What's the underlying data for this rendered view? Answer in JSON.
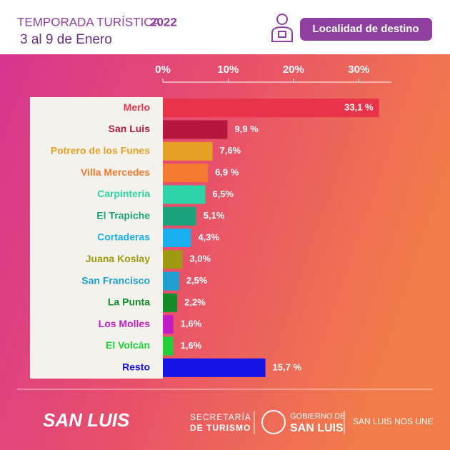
{
  "chart_data": {
    "type": "bar",
    "title": "TEMPORADA TURÍSTICA",
    "title_year": "2022",
    "subtitle": "3 al 9 de Enero",
    "button": "Localidad de destino",
    "categories": [
      "Merlo",
      "San Luis",
      "Potrero de los Funes",
      "Villa Mercedes",
      "Carpinteria",
      "El Trapiche",
      "Cortaderas",
      "Juana Koslay",
      "San Francisco",
      "La Punta",
      "Los Molles",
      "El Volcán",
      "Resto"
    ],
    "values": [
      33.1,
      9.9,
      7.6,
      6.9,
      6.5,
      5.1,
      4.3,
      3.0,
      2.5,
      2.2,
      1.6,
      1.6,
      15.7
    ],
    "value_labels": [
      "33,1 %",
      "9,9 %",
      "7,6%",
      "6,9 %",
      "6,5%",
      "5,1%",
      "4,3%",
      "3,0%",
      "2,5%",
      "2,2%",
      "1,6%",
      "1,6%",
      "15,7 %"
    ],
    "colors": [
      "#e8334a",
      "#b5173f",
      "#e6a023",
      "#f47a30",
      "#2dd4a8",
      "#1aa37a",
      "#1ab0f0",
      "#a09a12",
      "#1e9fd0",
      "#148c2a",
      "#c41cc4",
      "#22d13a",
      "#1414e6"
    ],
    "xlim": [
      0,
      35
    ],
    "xticks": [
      {
        "value": 0,
        "label": "0%"
      },
      {
        "value": 10,
        "label": "10%"
      },
      {
        "value": 20,
        "label": "20%"
      },
      {
        "value": 30,
        "label": "30%"
      }
    ],
    "footer": {
      "brand": "SAN LUIS",
      "secretaria_1": "SECRETARÍA",
      "secretaria_2": "DE TURISMO",
      "gobierno_1": "GOBIERNO DE",
      "gobierno_2": "SAN LUIS",
      "slogan": "SAN LUIS NOS UNE"
    }
  }
}
